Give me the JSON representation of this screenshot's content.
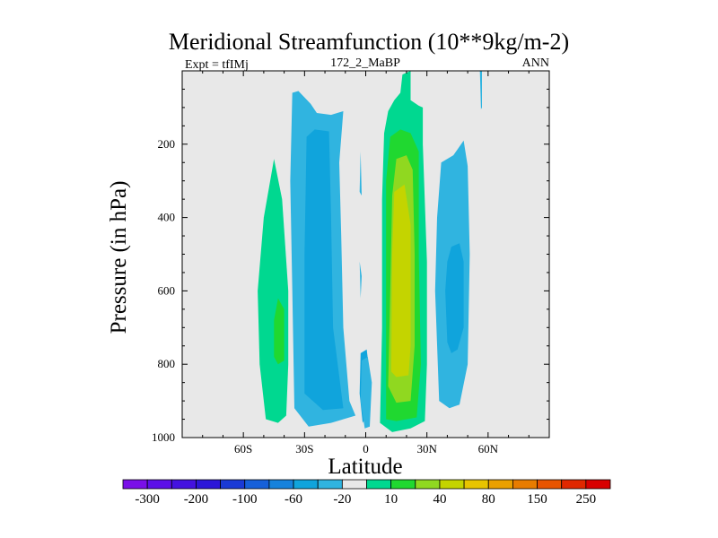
{
  "chart_data": {
    "type": "contour",
    "title": "Meridional Streamfunction (10**9kg/m-2)",
    "left_string": "Expt = tfIMj",
    "center_string": "172_2_MaBP",
    "right_string": "ANN",
    "xlabel": "Latitude",
    "ylabel": "Pressure (in hPa)",
    "x_range": [
      -90,
      90
    ],
    "y_range": [
      0,
      1000
    ],
    "y_reversed": true,
    "x_ticks": [
      {
        "value": -60,
        "label": "60S"
      },
      {
        "value": -30,
        "label": "30S"
      },
      {
        "value": 0,
        "label": "0"
      },
      {
        "value": 30,
        "label": "30N"
      },
      {
        "value": 60,
        "label": "60N"
      }
    ],
    "y_ticks": [
      {
        "value": 200,
        "label": "200"
      },
      {
        "value": 400,
        "label": "400"
      },
      {
        "value": 600,
        "label": "600"
      },
      {
        "value": 800,
        "label": "800"
      },
      {
        "value": 1000,
        "label": "1000"
      }
    ],
    "background_color": "#e8e8e8",
    "regions": [
      {
        "name": "sh-polar-cell-outer",
        "value": 10,
        "color": "#00d890",
        "points": [
          [
            -49,
            950
          ],
          [
            -52,
            800
          ],
          [
            -53,
            600
          ],
          [
            -50,
            400
          ],
          [
            -45,
            240
          ],
          [
            -41,
            350
          ],
          [
            -38,
            600
          ],
          [
            -38,
            800
          ],
          [
            -39,
            940
          ],
          [
            -43,
            960
          ]
        ]
      },
      {
        "name": "sh-polar-cell-core",
        "value": 20,
        "color": "#20d830",
        "points": [
          [
            -45,
            780
          ],
          [
            -45,
            680
          ],
          [
            -43,
            620
          ],
          [
            -40,
            650
          ],
          [
            -40,
            790
          ],
          [
            -43,
            800
          ]
        ]
      },
      {
        "name": "sh-ferrel-cell-outer",
        "value": -10,
        "color": "#30b4e0",
        "points": [
          [
            -35,
            920
          ],
          [
            -36,
            600
          ],
          [
            -37,
            300
          ],
          [
            -36,
            60
          ],
          [
            -33,
            55
          ],
          [
            -27,
            90
          ],
          [
            -24,
            115
          ],
          [
            -17,
            120
          ],
          [
            -11,
            110
          ],
          [
            -13,
            250
          ],
          [
            -12,
            450
          ],
          [
            -11,
            700
          ],
          [
            -8,
            900
          ],
          [
            -5,
            940
          ],
          [
            -17,
            960
          ],
          [
            -28,
            970
          ]
        ]
      },
      {
        "name": "sh-ferrel-cell-inner",
        "value": -20,
        "color": "#10a4dc",
        "points": [
          [
            -30,
            880
          ],
          [
            -30,
            500
          ],
          [
            -29,
            180
          ],
          [
            -25,
            160
          ],
          [
            -18,
            165
          ],
          [
            -17,
            400
          ],
          [
            -16,
            700
          ],
          [
            -11,
            920
          ],
          [
            -21,
            925
          ]
        ]
      },
      {
        "name": "equatorial-streak-upper",
        "value": -10,
        "color": "#30b4e0",
        "points": [
          [
            -2.5,
            220
          ],
          [
            -2,
            340
          ],
          [
            -3,
            330
          ]
        ]
      },
      {
        "name": "equatorial-streak-lower",
        "value": -10,
        "color": "#30b4e0",
        "points": [
          [
            -3,
            520
          ],
          [
            -2,
            560
          ],
          [
            -2.5,
            620
          ]
        ]
      },
      {
        "name": "equatorial-blob-inner",
        "value": -20,
        "color": "#10a4dc",
        "points": [
          [
            -1.5,
            960
          ],
          [
            -3,
            880
          ],
          [
            -2.5,
            770
          ],
          [
            0.5,
            760
          ],
          [
            2,
            830
          ],
          [
            1.5,
            930
          ]
        ]
      },
      {
        "name": "equatorial-blob-outer",
        "value": -10,
        "color": "#30b4e0",
        "points": [
          [
            -0.5,
            975
          ],
          [
            -2.5,
            900
          ],
          [
            -2,
            790
          ],
          [
            1,
            780
          ],
          [
            3,
            850
          ],
          [
            2,
            970
          ]
        ]
      },
      {
        "name": "nh-hadley-cell-outer",
        "value": 10,
        "color": "#00d890",
        "points": [
          [
            7,
            960
          ],
          [
            8,
            700
          ],
          [
            8,
            350
          ],
          [
            9,
            170
          ],
          [
            11,
            110
          ],
          [
            14,
            80
          ],
          [
            17,
            60
          ],
          [
            18,
            10
          ],
          [
            22,
            0
          ],
          [
            22,
            80
          ],
          [
            26,
            95
          ],
          [
            28,
            100
          ],
          [
            28,
            200
          ],
          [
            30,
            520
          ],
          [
            30,
            800
          ],
          [
            29,
            955
          ],
          [
            22,
            975
          ],
          [
            13,
            985
          ]
        ]
      },
      {
        "name": "nh-hadley-cell-40",
        "value": 40,
        "color": "#20d830",
        "points": [
          [
            10,
            950
          ],
          [
            10,
            700
          ],
          [
            10,
            300
          ],
          [
            12,
            180
          ],
          [
            17,
            160
          ],
          [
            22,
            170
          ],
          [
            26,
            220
          ],
          [
            26,
            500
          ],
          [
            27,
            800
          ],
          [
            25,
            945
          ],
          [
            15,
            955
          ]
        ]
      },
      {
        "name": "nh-hadley-cell-60",
        "value": 60,
        "color": "#90d820",
        "points": [
          [
            11,
            860
          ],
          [
            12,
            600
          ],
          [
            13,
            340
          ],
          [
            15,
            240
          ],
          [
            20,
            230
          ],
          [
            23,
            270
          ],
          [
            24,
            500
          ],
          [
            24,
            750
          ],
          [
            22,
            900
          ],
          [
            15,
            905
          ]
        ]
      },
      {
        "name": "nh-hadley-cell-80",
        "value": 80,
        "color": "#c4d400",
        "points": [
          [
            12.5,
            820
          ],
          [
            13,
            500
          ],
          [
            14,
            330
          ],
          [
            19,
            310
          ],
          [
            22,
            420
          ],
          [
            22,
            750
          ],
          [
            21,
            830
          ],
          [
            15,
            835
          ]
        ]
      },
      {
        "name": "nh-ferrel-cell-outer",
        "value": -10,
        "color": "#30b4e0",
        "points": [
          [
            36,
            900
          ],
          [
            34,
            600
          ],
          [
            35,
            400
          ],
          [
            37,
            250
          ],
          [
            43,
            230
          ],
          [
            48,
            190
          ],
          [
            50,
            260
          ],
          [
            51,
            500
          ],
          [
            50,
            800
          ],
          [
            46,
            910
          ],
          [
            41,
            920
          ]
        ]
      },
      {
        "name": "nh-ferrel-cell-inner",
        "value": -20,
        "color": "#10a4dc",
        "points": [
          [
            40,
            740
          ],
          [
            39,
            600
          ],
          [
            40,
            520
          ],
          [
            42,
            480
          ],
          [
            46,
            470
          ],
          [
            48,
            520
          ],
          [
            48,
            700
          ],
          [
            45,
            760
          ],
          [
            42,
            770
          ]
        ]
      },
      {
        "name": "nh-top-streak",
        "value": -10,
        "color": "#30b4e0",
        "points": [
          [
            56,
            0
          ],
          [
            57,
            0
          ],
          [
            57,
            100
          ],
          [
            56.5,
            105
          ]
        ]
      }
    ],
    "colorbar": {
      "colors": [
        "#7a10e8",
        "#5c10e8",
        "#4412e0",
        "#2c16d8",
        "#1a3ad6",
        "#1660da",
        "#1682dc",
        "#10a4dc",
        "#30b4e0",
        "#e8e8e8",
        "#00d890",
        "#20d830",
        "#90d820",
        "#c4d400",
        "#e8c400",
        "#eaa000",
        "#e87c00",
        "#e85400",
        "#e02800",
        "#d80000"
      ],
      "labels": [
        "-300",
        "-200",
        "-100",
        "-60",
        "-20",
        "10",
        "40",
        "80",
        "150",
        "250"
      ]
    }
  }
}
